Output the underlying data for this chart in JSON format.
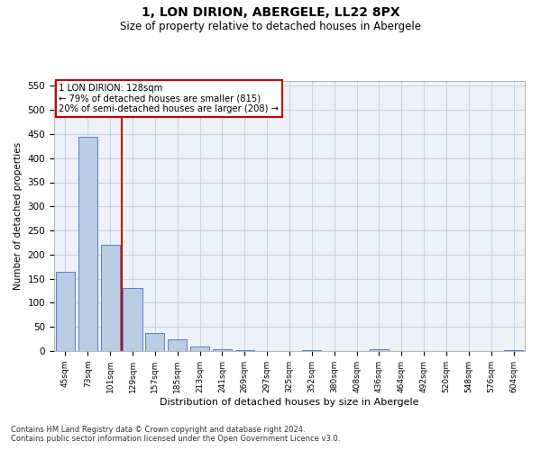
{
  "title_line1": "1, LON DIRION, ABERGELE, LL22 8PX",
  "title_line2": "Size of property relative to detached houses in Abergele",
  "xlabel": "Distribution of detached houses by size in Abergele",
  "ylabel": "Number of detached properties",
  "categories": [
    "45sqm",
    "73sqm",
    "101sqm",
    "129sqm",
    "157sqm",
    "185sqm",
    "213sqm",
    "241sqm",
    "269sqm",
    "297sqm",
    "325sqm",
    "352sqm",
    "380sqm",
    "408sqm",
    "436sqm",
    "464sqm",
    "492sqm",
    "520sqm",
    "548sqm",
    "576sqm",
    "604sqm"
  ],
  "values": [
    165,
    445,
    220,
    130,
    37,
    25,
    9,
    4,
    1,
    0,
    0,
    2,
    0,
    0,
    3,
    0,
    0,
    0,
    0,
    0,
    1
  ],
  "bar_color": "#b8cce4",
  "bar_edge_color": "#4472c4",
  "annotation_line1": "1 LON DIRION: 128sqm",
  "annotation_line2": "← 79% of detached houses are smaller (815)",
  "annotation_line3": "20% of semi-detached houses are larger (208) →",
  "vline_color": "#cc0000",
  "vline_x": 2.5,
  "annotation_box_edgecolor": "#cc0000",
  "ylim": [
    0,
    560
  ],
  "yticks": [
    0,
    50,
    100,
    150,
    200,
    250,
    300,
    350,
    400,
    450,
    500,
    550
  ],
  "grid_color": "#c5d5e8",
  "background_color": "#eef2f8",
  "footnote1": "Contains HM Land Registry data © Crown copyright and database right 2024.",
  "footnote2": "Contains public sector information licensed under the Open Government Licence v3.0."
}
